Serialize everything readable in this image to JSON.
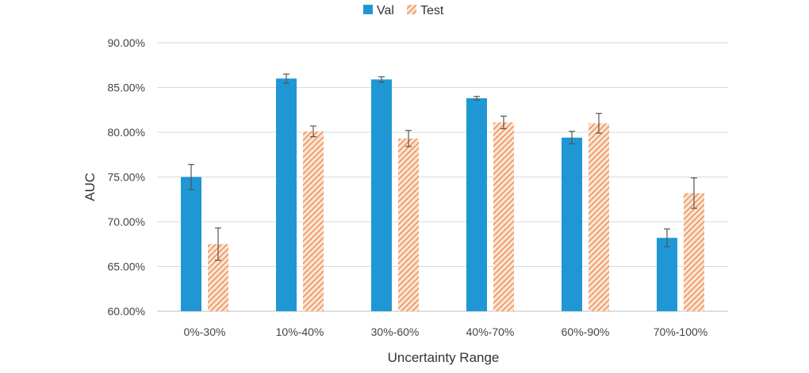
{
  "chart_data": {
    "type": "bar",
    "title": "",
    "xlabel": "Uncertainty Range",
    "ylabel": "AUC",
    "categories": [
      "0%-30%",
      "10%-40%",
      "30%-60%",
      "40%-70%",
      "60%-90%",
      "70%-100%"
    ],
    "series": [
      {
        "name": "Val",
        "values": [
          75.0,
          86.0,
          85.9,
          83.8,
          79.4,
          68.2
        ],
        "error": [
          1.4,
          0.5,
          0.3,
          0.2,
          0.7,
          1.0
        ],
        "color": "#1f97d4"
      },
      {
        "name": "Test",
        "values": [
          67.5,
          80.1,
          79.3,
          81.1,
          81.0,
          73.2
        ],
        "error": [
          1.8,
          0.6,
          0.9,
          0.7,
          1.1,
          1.7
        ],
        "color": "#f0a77a",
        "pattern": "diagonal-hatch",
        "pattern_color": "#e8762c"
      }
    ],
    "ylim": [
      60,
      90
    ],
    "yticks": [
      "60.00%",
      "65.00%",
      "70.00%",
      "75.00%",
      "80.00%",
      "85.00%",
      "90.00%"
    ],
    "ytick_values": [
      60,
      65,
      70,
      75,
      80,
      85,
      90
    ],
    "grid": true,
    "legend_position": "top-center"
  }
}
